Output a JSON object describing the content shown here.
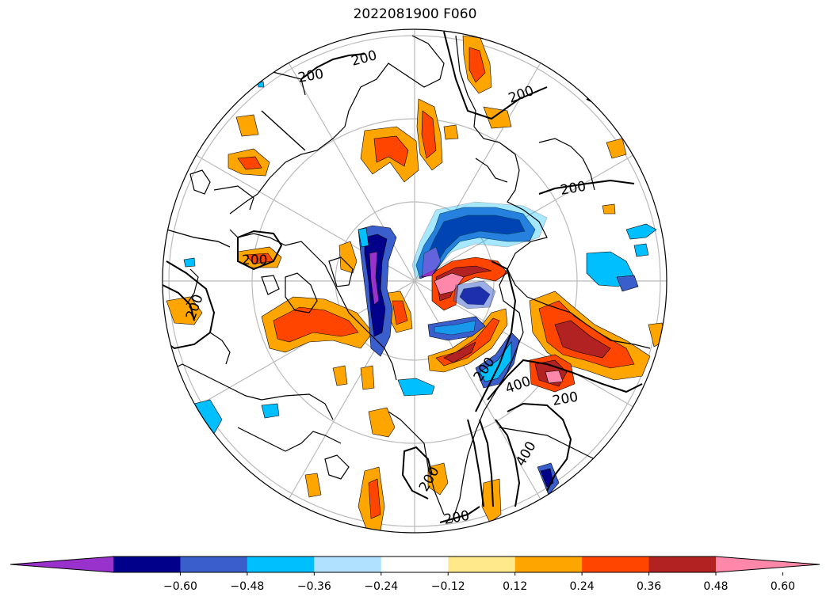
{
  "figure": {
    "title": "2022081900 F060"
  },
  "map": {
    "projection": "north-polar-stereographic",
    "graticule": "on",
    "coastlines": "on",
    "contour_lines": {
      "labels": [
        "200",
        "200",
        "200",
        "200",
        "200",
        "200",
        "200",
        "400",
        "200",
        "400",
        "200",
        "200"
      ]
    }
  },
  "colorbar": {
    "orientation": "horizontal",
    "extend": "both",
    "bounds": [
      -0.72,
      -0.6,
      -0.48,
      -0.36,
      -0.24,
      -0.12,
      0.12,
      0.24,
      0.36,
      0.48,
      0.6,
      0.72
    ],
    "colors": [
      "#9932cc",
      "#00008b",
      "#3a5fcd",
      "#00bfff",
      "#b0e2ff",
      "#ffffff",
      "#ffe98a",
      "#ffa500",
      "#ff4500",
      "#b22222",
      "#ff88aa"
    ],
    "tick_labels": [
      "−0.60",
      "−0.48",
      "−0.36",
      "−0.24",
      "−0.12",
      "0.12",
      "0.24",
      "0.36",
      "0.48",
      "0.60"
    ]
  }
}
